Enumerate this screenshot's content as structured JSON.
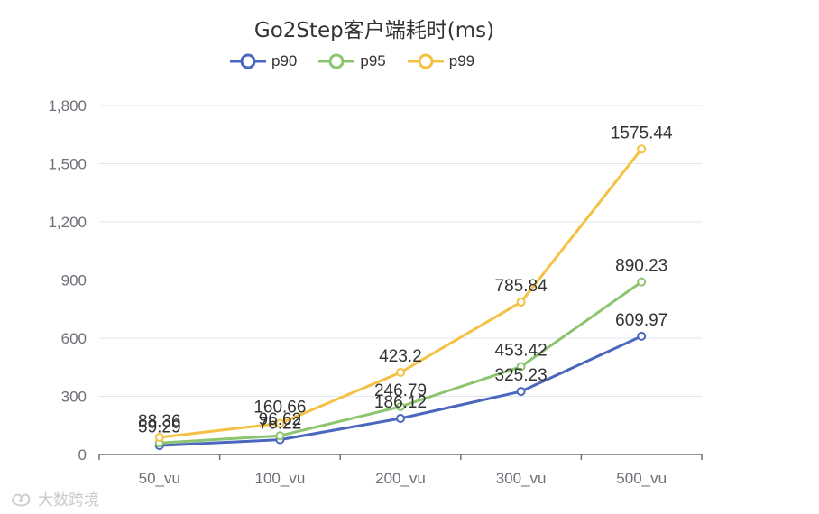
{
  "chart_data": {
    "type": "line",
    "title": "Go2Step客户端耗时(ms)",
    "categories": [
      "50_vu",
      "100_vu",
      "200_vu",
      "300_vu",
      "500_vu"
    ],
    "series": [
      {
        "name": "p90",
        "color": "#4a66bd",
        "values": [
          46.0,
          76.22,
          186.12,
          325.23,
          609.97
        ],
        "labels": [
          "",
          "76.22",
          "186.12",
          "325.23",
          "609.97"
        ]
      },
      {
        "name": "p95",
        "color": "#8cc56f",
        "values": [
          59.29,
          96.62,
          246.79,
          453.42,
          890.23
        ],
        "labels": [
          "59.29",
          "96.62",
          "246.79",
          "453.42",
          "890.23"
        ]
      },
      {
        "name": "p99",
        "color": "#f5c142",
        "values": [
          88.36,
          160.66,
          423.2,
          785.84,
          1575.44
        ],
        "labels": [
          "88.36",
          "160.66",
          "423.2",
          "785.84",
          "1575.44"
        ]
      }
    ],
    "ylim": [
      0,
      1800
    ],
    "yticks": [
      0,
      300,
      600,
      900,
      1200,
      1500,
      1800
    ],
    "ytick_labels": [
      "0",
      "300",
      "600",
      "900",
      "1,200",
      "1,500",
      "1,800"
    ],
    "grid": true,
    "legend_position": "top-center",
    "xlabel": "",
    "ylabel": ""
  },
  "watermark": {
    "text": "大数跨境"
  }
}
